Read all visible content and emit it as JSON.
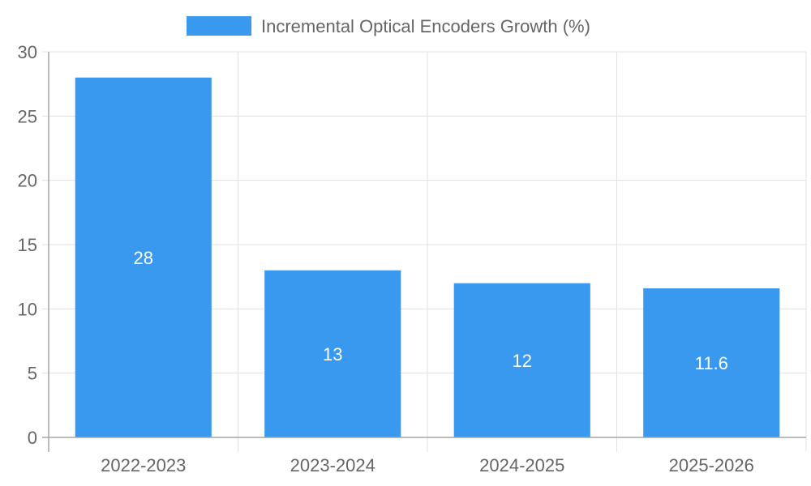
{
  "chart_data": {
    "type": "bar",
    "categories": [
      "2022-2023",
      "2023-2024",
      "2024-2025",
      "2025-2026"
    ],
    "series": [
      {
        "name": "Incremental Optical Encoders Growth (%)",
        "values": [
          28,
          13,
          12,
          11.6
        ]
      }
    ],
    "data_labels": [
      "28",
      "13",
      "12",
      "11.6"
    ],
    "y_ticks": [
      "0",
      "5",
      "10",
      "15",
      "20",
      "25",
      "30"
    ],
    "ylim": [
      0,
      30
    ],
    "grid": true,
    "legend_position": "top",
    "colors": {
      "bar": "#3899EE",
      "grid": "#e1e1e1",
      "axis": "#a6a6a6",
      "text": "#666666",
      "data_label": "#ffffff"
    }
  }
}
